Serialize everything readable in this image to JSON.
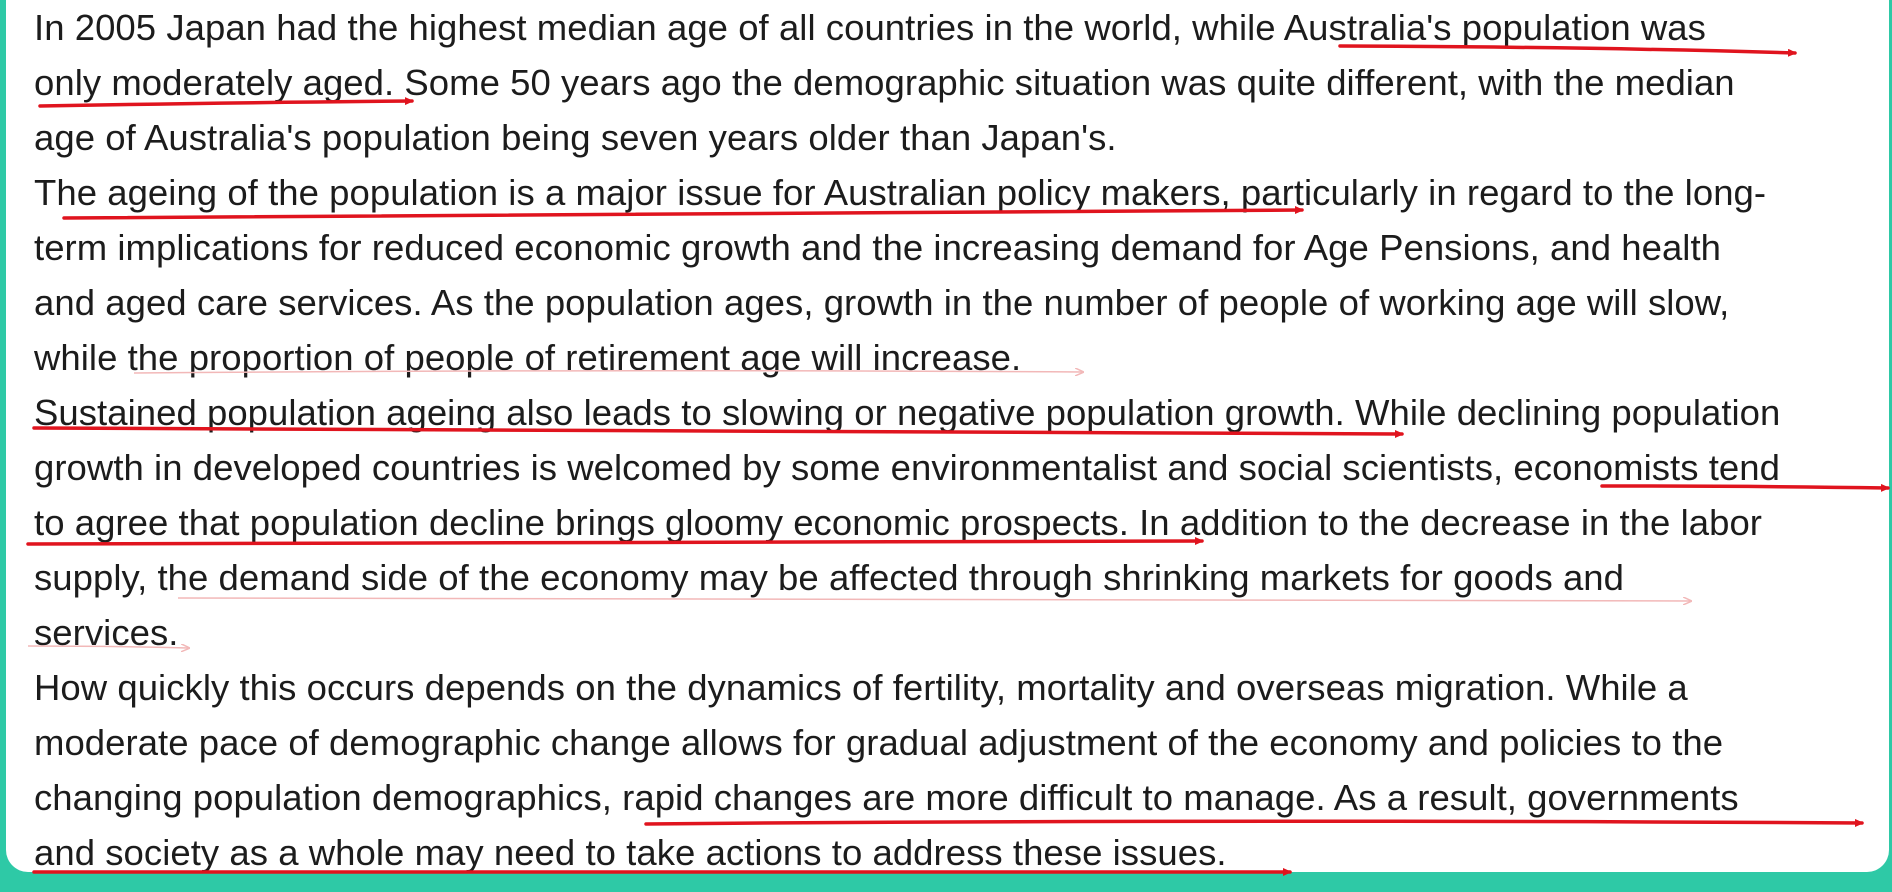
{
  "lines": [
    "In 2005 Japan had the highest median age of all countries in the world, while Australia's population was",
    "only moderately aged. Some 50 years ago the demographic situation was quite different, with the median",
    "age of Australia's population being seven years older than Japan's.",
    "The ageing of the population is a major issue for Australian policy makers, particularly in regard to the long-",
    "term implications for reduced economic growth and the increasing demand for Age Pensions, and health",
    "and aged care services. As the population ages, growth in the number of people of working age will slow,",
    "while the proportion of people of retirement age will increase.",
    "Sustained population ageing also leads to slowing or negative population growth. While declining population",
    "growth in developed countries is welcomed by some environmentalist and social scientists, economists tend",
    "to agree that population decline brings gloomy economic prospects. In addition to the decrease in the labor",
    "supply, the demand side of the economy may be affected through shrinking markets for goods and",
    "services.",
    "How quickly this occurs depends on the dynamics of fertility, mortality and overseas migration. While a",
    "moderate pace of demographic change allows for gradual adjustment of the economy and policies to the",
    "changing population demographics, rapid changes are more difficult to manage. As a result, governments",
    "and society as a whole may need to take actions to address these issues."
  ],
  "colors": {
    "background": "#2ec9a6",
    "panel": "#ffffff",
    "text": "#1c1c1c",
    "annotation_strong": "#e0141e",
    "annotation_faint": "#f2b8b8"
  }
}
